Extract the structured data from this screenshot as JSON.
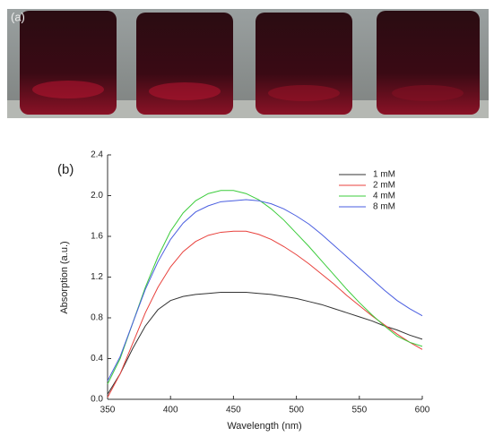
{
  "panel_a": {
    "label": "(a)"
  },
  "chart_data": {
    "type": "line",
    "panel_label": "(b)",
    "x_label": "Wavelength (nm)",
    "y_label": "Absorption (a.u.)",
    "x": [
      350,
      360,
      370,
      380,
      390,
      400,
      410,
      420,
      430,
      440,
      450,
      460,
      470,
      480,
      490,
      500,
      510,
      520,
      530,
      540,
      550,
      560,
      570,
      580,
      590,
      600
    ],
    "series": [
      {
        "name": "1 mM",
        "color": "#333333",
        "values": [
          0.05,
          0.25,
          0.5,
          0.72,
          0.88,
          0.97,
          1.01,
          1.03,
          1.04,
          1.05,
          1.05,
          1.05,
          1.04,
          1.03,
          1.01,
          0.99,
          0.96,
          0.93,
          0.89,
          0.85,
          0.81,
          0.77,
          0.72,
          0.68,
          0.63,
          0.59
        ]
      },
      {
        "name": "2 mM",
        "color": "#e8413c",
        "values": [
          0.02,
          0.25,
          0.55,
          0.85,
          1.1,
          1.3,
          1.45,
          1.55,
          1.61,
          1.64,
          1.65,
          1.65,
          1.62,
          1.57,
          1.5,
          1.42,
          1.33,
          1.23,
          1.13,
          1.02,
          0.92,
          0.82,
          0.73,
          0.64,
          0.56,
          0.49
        ]
      },
      {
        "name": "4 mM",
        "color": "#3ccc3c",
        "values": [
          0.15,
          0.4,
          0.75,
          1.1,
          1.4,
          1.65,
          1.83,
          1.95,
          2.02,
          2.05,
          2.05,
          2.02,
          1.96,
          1.87,
          1.76,
          1.63,
          1.5,
          1.36,
          1.22,
          1.08,
          0.95,
          0.83,
          0.72,
          0.62,
          0.56,
          0.52
        ]
      },
      {
        "name": "8 mM",
        "color": "#4a5ee0",
        "values": [
          0.18,
          0.42,
          0.75,
          1.08,
          1.35,
          1.57,
          1.73,
          1.84,
          1.9,
          1.94,
          1.95,
          1.96,
          1.95,
          1.92,
          1.87,
          1.8,
          1.72,
          1.62,
          1.51,
          1.4,
          1.29,
          1.18,
          1.07,
          0.97,
          0.89,
          0.82
        ]
      }
    ],
    "xlim": [
      350,
      600
    ],
    "xticks": [
      350,
      400,
      450,
      500,
      550,
      600
    ],
    "ylim": [
      0,
      2.4
    ],
    "yticks": [
      {
        "value": 0,
        "label": "0.0"
      },
      0.4,
      0.8,
      1.2,
      1.6,
      {
        "value": 2,
        "label": "2.0"
      },
      2.4
    ],
    "legend": "upper-right",
    "grid": false
  }
}
